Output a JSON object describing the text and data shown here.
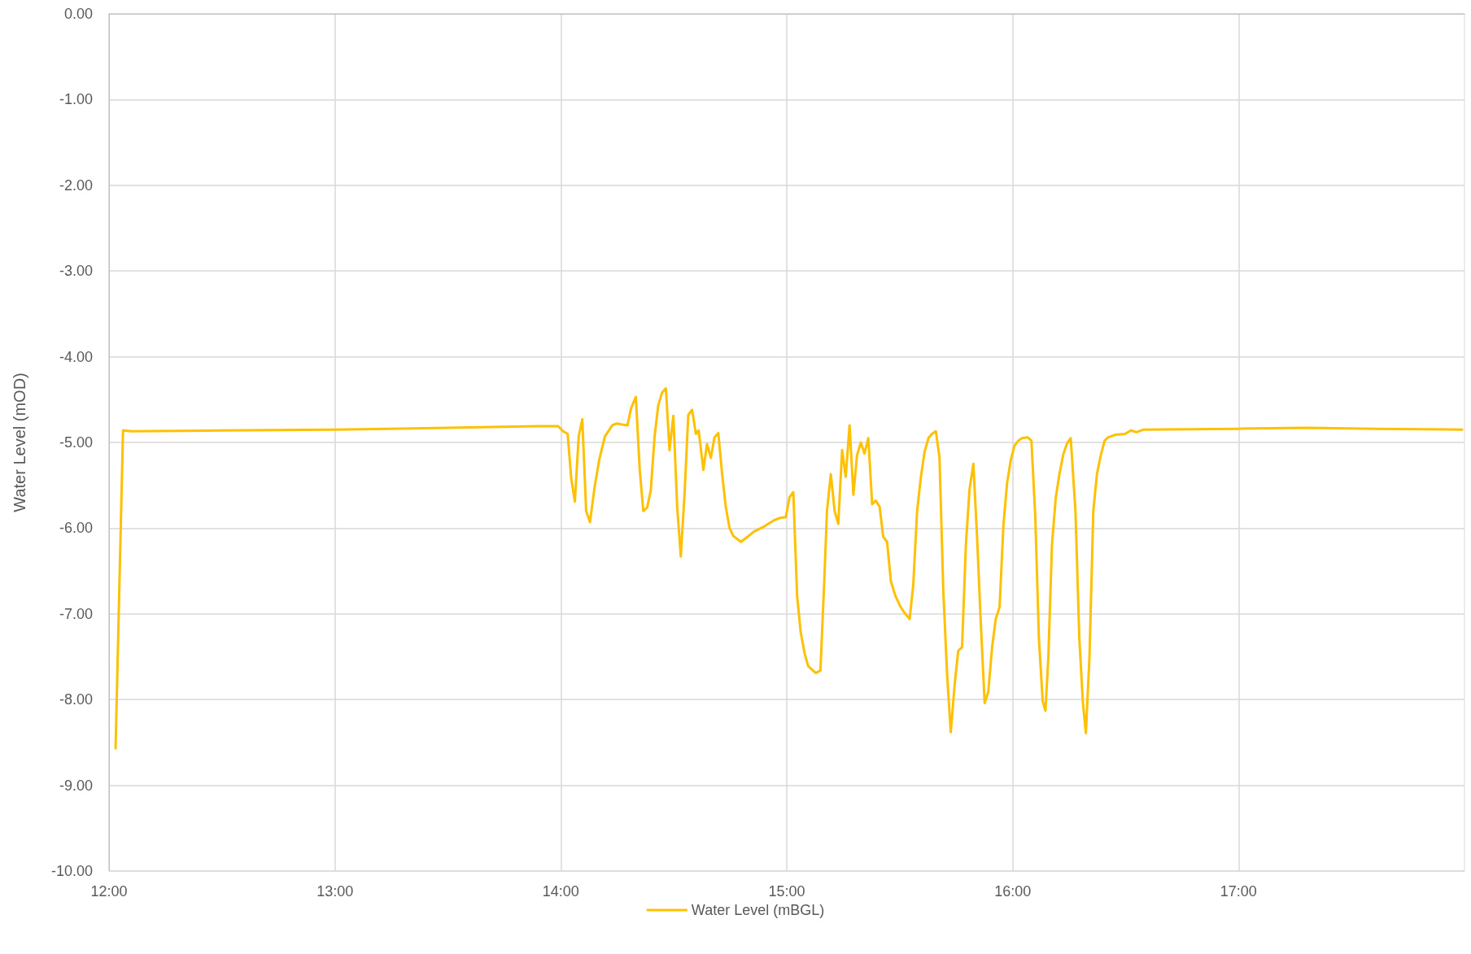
{
  "chart_data": {
    "type": "line",
    "xlabel": null,
    "ylabel": "Water Level (mOD)",
    "legend": "bottom",
    "grid": true,
    "marker": "none",
    "line_style": "solid",
    "xlim": [
      12,
      18
    ],
    "xticks": [
      {
        "value": 12,
        "label": "12:00"
      },
      {
        "value": 13,
        "label": "13:00"
      },
      {
        "value": 14,
        "label": "14:00"
      },
      {
        "value": 15,
        "label": "15:00"
      },
      {
        "value": 16,
        "label": "16:00"
      },
      {
        "value": 17,
        "label": "17:00"
      }
    ],
    "ylim": [
      -10,
      0
    ],
    "yticks": [
      {
        "value": -10,
        "label": "-10.00"
      },
      {
        "value": -9,
        "label": "-9.00"
      },
      {
        "value": -8,
        "label": "-8.00"
      },
      {
        "value": -7,
        "label": "-7.00"
      },
      {
        "value": -6,
        "label": "-6.00"
      },
      {
        "value": -5,
        "label": "-5.00"
      },
      {
        "value": -4,
        "label": "-4.00"
      },
      {
        "value": -3,
        "label": "-3.00"
      },
      {
        "value": -2,
        "label": "-2.00"
      },
      {
        "value": -1,
        "label": "-1.00"
      },
      {
        "value": 0,
        "label": "0.00"
      }
    ],
    "x": [
      12.029,
      12.062,
      12.1,
      12.5,
      13.0,
      13.5,
      13.9,
      13.988,
      14.01,
      14.03,
      14.046,
      14.062,
      14.079,
      14.095,
      14.112,
      14.129,
      14.149,
      14.17,
      14.195,
      14.228,
      14.245,
      14.295,
      14.311,
      14.332,
      14.349,
      14.365,
      14.382,
      14.398,
      14.415,
      14.431,
      14.448,
      14.465,
      14.481,
      14.498,
      14.515,
      14.531,
      14.548,
      14.564,
      14.581,
      14.598,
      14.61,
      14.631,
      14.647,
      14.664,
      14.68,
      14.697,
      14.714,
      14.73,
      14.747,
      14.763,
      14.797,
      14.822,
      14.855,
      14.9,
      14.942,
      14.971,
      14.996,
      15.012,
      15.029,
      15.046,
      15.062,
      15.079,
      15.095,
      15.129,
      15.149,
      15.166,
      15.178,
      15.195,
      15.212,
      15.228,
      15.245,
      15.261,
      15.278,
      15.295,
      15.311,
      15.328,
      15.344,
      15.361,
      15.378,
      15.394,
      15.411,
      15.427,
      15.444,
      15.461,
      15.481,
      15.502,
      15.519,
      15.544,
      15.56,
      15.577,
      15.593,
      15.61,
      15.627,
      15.643,
      15.66,
      15.676,
      15.693,
      15.71,
      15.726,
      15.743,
      15.759,
      15.776,
      15.793,
      15.809,
      15.826,
      15.842,
      15.859,
      15.876,
      15.892,
      15.909,
      15.925,
      15.942,
      15.959,
      15.975,
      15.992,
      16.008,
      16.025,
      16.041,
      16.066,
      16.083,
      16.1,
      16.116,
      16.133,
      16.145,
      16.158,
      16.174,
      16.191,
      16.207,
      16.224,
      16.241,
      16.257,
      16.278,
      16.295,
      16.311,
      16.324,
      16.34,
      16.357,
      16.373,
      16.39,
      16.407,
      16.423,
      16.456,
      16.498,
      16.523,
      16.548,
      16.581,
      17.0,
      17.3,
      17.6,
      17.99
    ],
    "series": [
      {
        "name": "Water Level (mBGL)",
        "color": "#ffc000",
        "values": [
          -8.57,
          -4.86,
          -4.87,
          -4.86,
          -4.85,
          -4.83,
          -4.81,
          -4.81,
          -4.87,
          -4.9,
          -5.42,
          -5.69,
          -4.93,
          -4.73,
          -5.8,
          -5.93,
          -5.53,
          -5.2,
          -4.93,
          -4.8,
          -4.78,
          -4.8,
          -4.6,
          -4.47,
          -5.31,
          -5.8,
          -5.76,
          -5.56,
          -4.93,
          -4.57,
          -4.42,
          -4.37,
          -5.09,
          -4.69,
          -5.75,
          -6.33,
          -5.58,
          -4.68,
          -4.62,
          -4.9,
          -4.86,
          -5.32,
          -5.02,
          -5.18,
          -4.94,
          -4.89,
          -5.37,
          -5.75,
          -6.0,
          -6.09,
          -6.16,
          -6.11,
          -6.04,
          -5.98,
          -5.91,
          -5.88,
          -5.87,
          -5.64,
          -5.58,
          -6.8,
          -7.22,
          -7.46,
          -7.61,
          -7.69,
          -7.66,
          -6.62,
          -5.8,
          -5.37,
          -5.8,
          -5.95,
          -5.09,
          -5.4,
          -4.8,
          -5.61,
          -5.15,
          -5.0,
          -5.13,
          -4.95,
          -5.72,
          -5.68,
          -5.75,
          -6.1,
          -6.16,
          -6.62,
          -6.79,
          -6.91,
          -6.98,
          -7.06,
          -6.66,
          -5.8,
          -5.42,
          -5.11,
          -4.95,
          -4.9,
          -4.87,
          -5.17,
          -6.73,
          -7.72,
          -8.38,
          -7.83,
          -7.43,
          -7.39,
          -6.19,
          -5.55,
          -5.25,
          -6.08,
          -7.11,
          -8.04,
          -7.91,
          -7.39,
          -7.06,
          -6.92,
          -5.97,
          -5.48,
          -5.2,
          -5.04,
          -4.98,
          -4.95,
          -4.94,
          -4.98,
          -5.86,
          -7.28,
          -8.02,
          -8.13,
          -7.5,
          -6.19,
          -5.64,
          -5.37,
          -5.14,
          -5.01,
          -4.95,
          -5.8,
          -7.28,
          -8.04,
          -8.39,
          -7.5,
          -5.8,
          -5.37,
          -5.15,
          -4.98,
          -4.94,
          -4.91,
          -4.9,
          -4.86,
          -4.88,
          -4.85,
          -4.84,
          -4.83,
          -4.84,
          -4.85
        ]
      }
    ]
  }
}
